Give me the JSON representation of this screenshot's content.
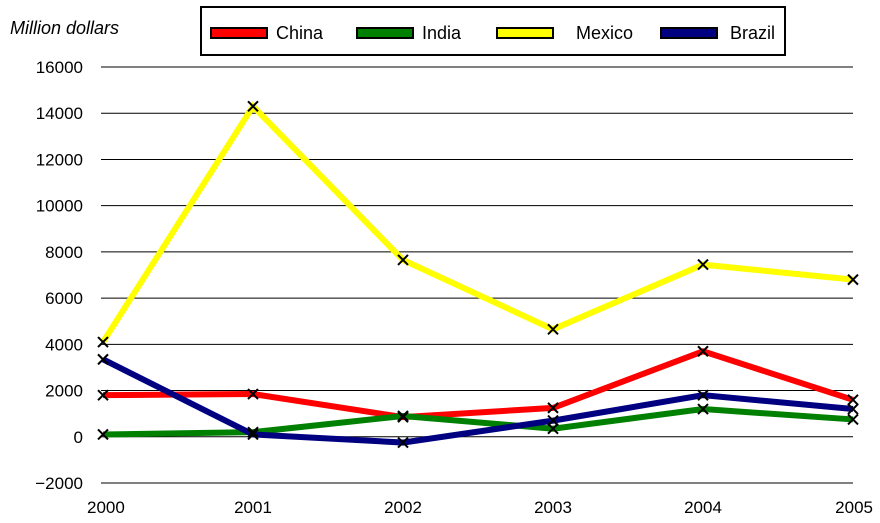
{
  "chart_data": {
    "type": "line",
    "ylabel": "Million dollars",
    "x": [
      "2000",
      "2001",
      "2002",
      "2003",
      "2004",
      "2005"
    ],
    "ylim": [
      -2000,
      16000
    ],
    "yticks": [
      -2000,
      0,
      2000,
      4000,
      6000,
      8000,
      10000,
      12000,
      14000,
      16000
    ],
    "grid": "horizontal",
    "legend_position": "top",
    "series": [
      {
        "name": "China",
        "color": "#ff0000",
        "values": [
          1800,
          1850,
          850,
          1250,
          3700,
          1600
        ]
      },
      {
        "name": "India",
        "color": "#008000",
        "values": [
          100,
          200,
          900,
          350,
          1200,
          750
        ]
      },
      {
        "name": "Mexico",
        "color": "#ffff00",
        "values": [
          4100,
          14300,
          7650,
          4650,
          7450,
          6800
        ]
      },
      {
        "name": "Brazil",
        "color": "#000080",
        "values": [
          3350,
          100,
          -250,
          700,
          1800,
          1200
        ]
      }
    ]
  }
}
